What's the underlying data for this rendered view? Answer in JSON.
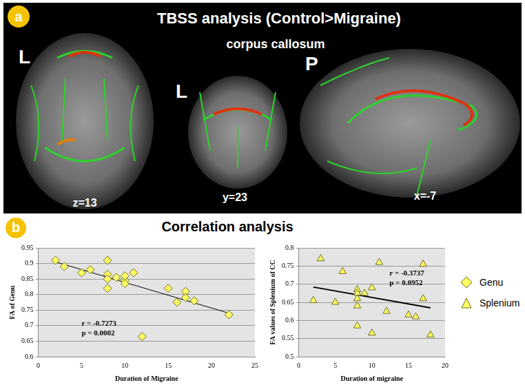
{
  "panel_a": {
    "label": "a",
    "title": "TBSS analysis (Control>Migraine)",
    "subtitle": "corpus callosum",
    "views": [
      {
        "orientation": "L",
        "slice": "z=13"
      },
      {
        "orientation": "L",
        "slice": "y=23"
      },
      {
        "orientation": "P",
        "slice": "x=-7"
      }
    ]
  },
  "panel_b": {
    "label": "b",
    "title": "Correlation analysis"
  },
  "chart_data": [
    {
      "type": "scatter",
      "x_label": "Duration of Migraine",
      "y_label": "FA of Genu",
      "annotations": [
        "r = -0.7273",
        "p = 0.0002"
      ],
      "series": [
        {
          "name": "Genu",
          "color": "#ffff66",
          "marker": "diamond",
          "x": [
            2,
            3,
            5,
            6,
            8,
            8,
            8,
            8,
            9,
            10,
            10,
            10,
            11,
            12,
            15,
            16,
            17,
            17,
            18,
            22
          ],
          "values": [
            0.91,
            0.89,
            0.87,
            0.88,
            0.91,
            0.865,
            0.85,
            0.82,
            0.855,
            0.845,
            0.835,
            0.86,
            0.87,
            0.665,
            0.82,
            0.775,
            0.81,
            0.79,
            0.78,
            0.735
          ]
        }
      ],
      "fit_line": {
        "x": [
          2,
          22
        ],
        "values": [
          0.905,
          0.74
        ]
      },
      "xlim": [
        0,
        25
      ],
      "xticks": [
        0,
        5,
        10,
        15,
        20,
        25
      ],
      "ylim": [
        0.6,
        0.95
      ],
      "yticks": [
        0.6,
        0.65,
        0.7,
        0.75,
        0.8,
        0.85,
        0.9,
        0.95
      ],
      "grid": true
    },
    {
      "type": "scatter",
      "x_label": "Duration of migraine",
      "y_label": "FA values of Splenium of CC",
      "annotations": [
        "r = -0.3737",
        "p = 0.0952"
      ],
      "series": [
        {
          "name": "Splenium",
          "color": "#ffff66",
          "marker": "triangle",
          "x": [
            2,
            3,
            5,
            6,
            8,
            8,
            8,
            8,
            8,
            9,
            10,
            10,
            11,
            12,
            15,
            16,
            17,
            17,
            18
          ],
          "values": [
            0.655,
            0.77,
            0.65,
            0.735,
            0.685,
            0.675,
            0.66,
            0.64,
            0.585,
            0.675,
            0.69,
            0.565,
            0.76,
            0.625,
            0.615,
            0.61,
            0.755,
            0.66,
            0.56
          ]
        }
      ],
      "fit_line": {
        "x": [
          2,
          18
        ],
        "values": [
          0.692,
          0.635
        ]
      },
      "xlim": [
        0,
        20
      ],
      "xticks": [
        0,
        5,
        10,
        15,
        20
      ],
      "ylim": [
        0.5,
        0.8
      ],
      "yticks": [
        0.5,
        0.55,
        0.6,
        0.65,
        0.7,
        0.75,
        0.8
      ],
      "grid": true
    }
  ]
}
